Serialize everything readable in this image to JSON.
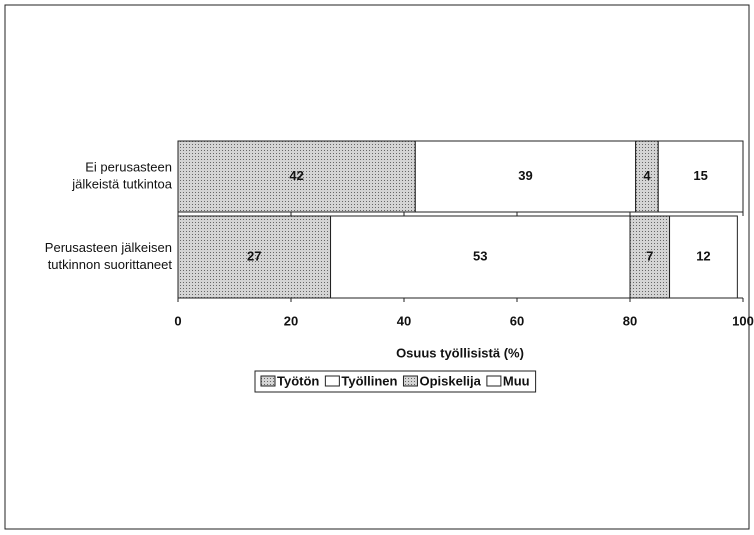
{
  "chart_data": {
    "type": "stacked-barh",
    "xlabel": "Osuus työllisistä (%)",
    "categories": [
      [
        "Ei perusasteen",
        "jälkeistä tutkintoa"
      ],
      [
        "Perusasteen jälkeisen",
        "tutkinnon suorittaneet"
      ]
    ],
    "series": [
      {
        "name": "Työtön",
        "color": "#c4c4c4",
        "values": [
          42,
          27
        ]
      },
      {
        "name": "Työllinen",
        "color": "#ffffff",
        "values": [
          39,
          53
        ]
      },
      {
        "name": "Opiskelija",
        "color": "#c4c4c4",
        "values": [
          4,
          7
        ]
      },
      {
        "name": "Muu",
        "color": "#ffffff",
        "values": [
          15,
          12
        ]
      }
    ],
    "xlim": [
      0,
      100
    ],
    "xticks": [
      0,
      20,
      40,
      60,
      80,
      100
    ],
    "legend": "bottom"
  }
}
